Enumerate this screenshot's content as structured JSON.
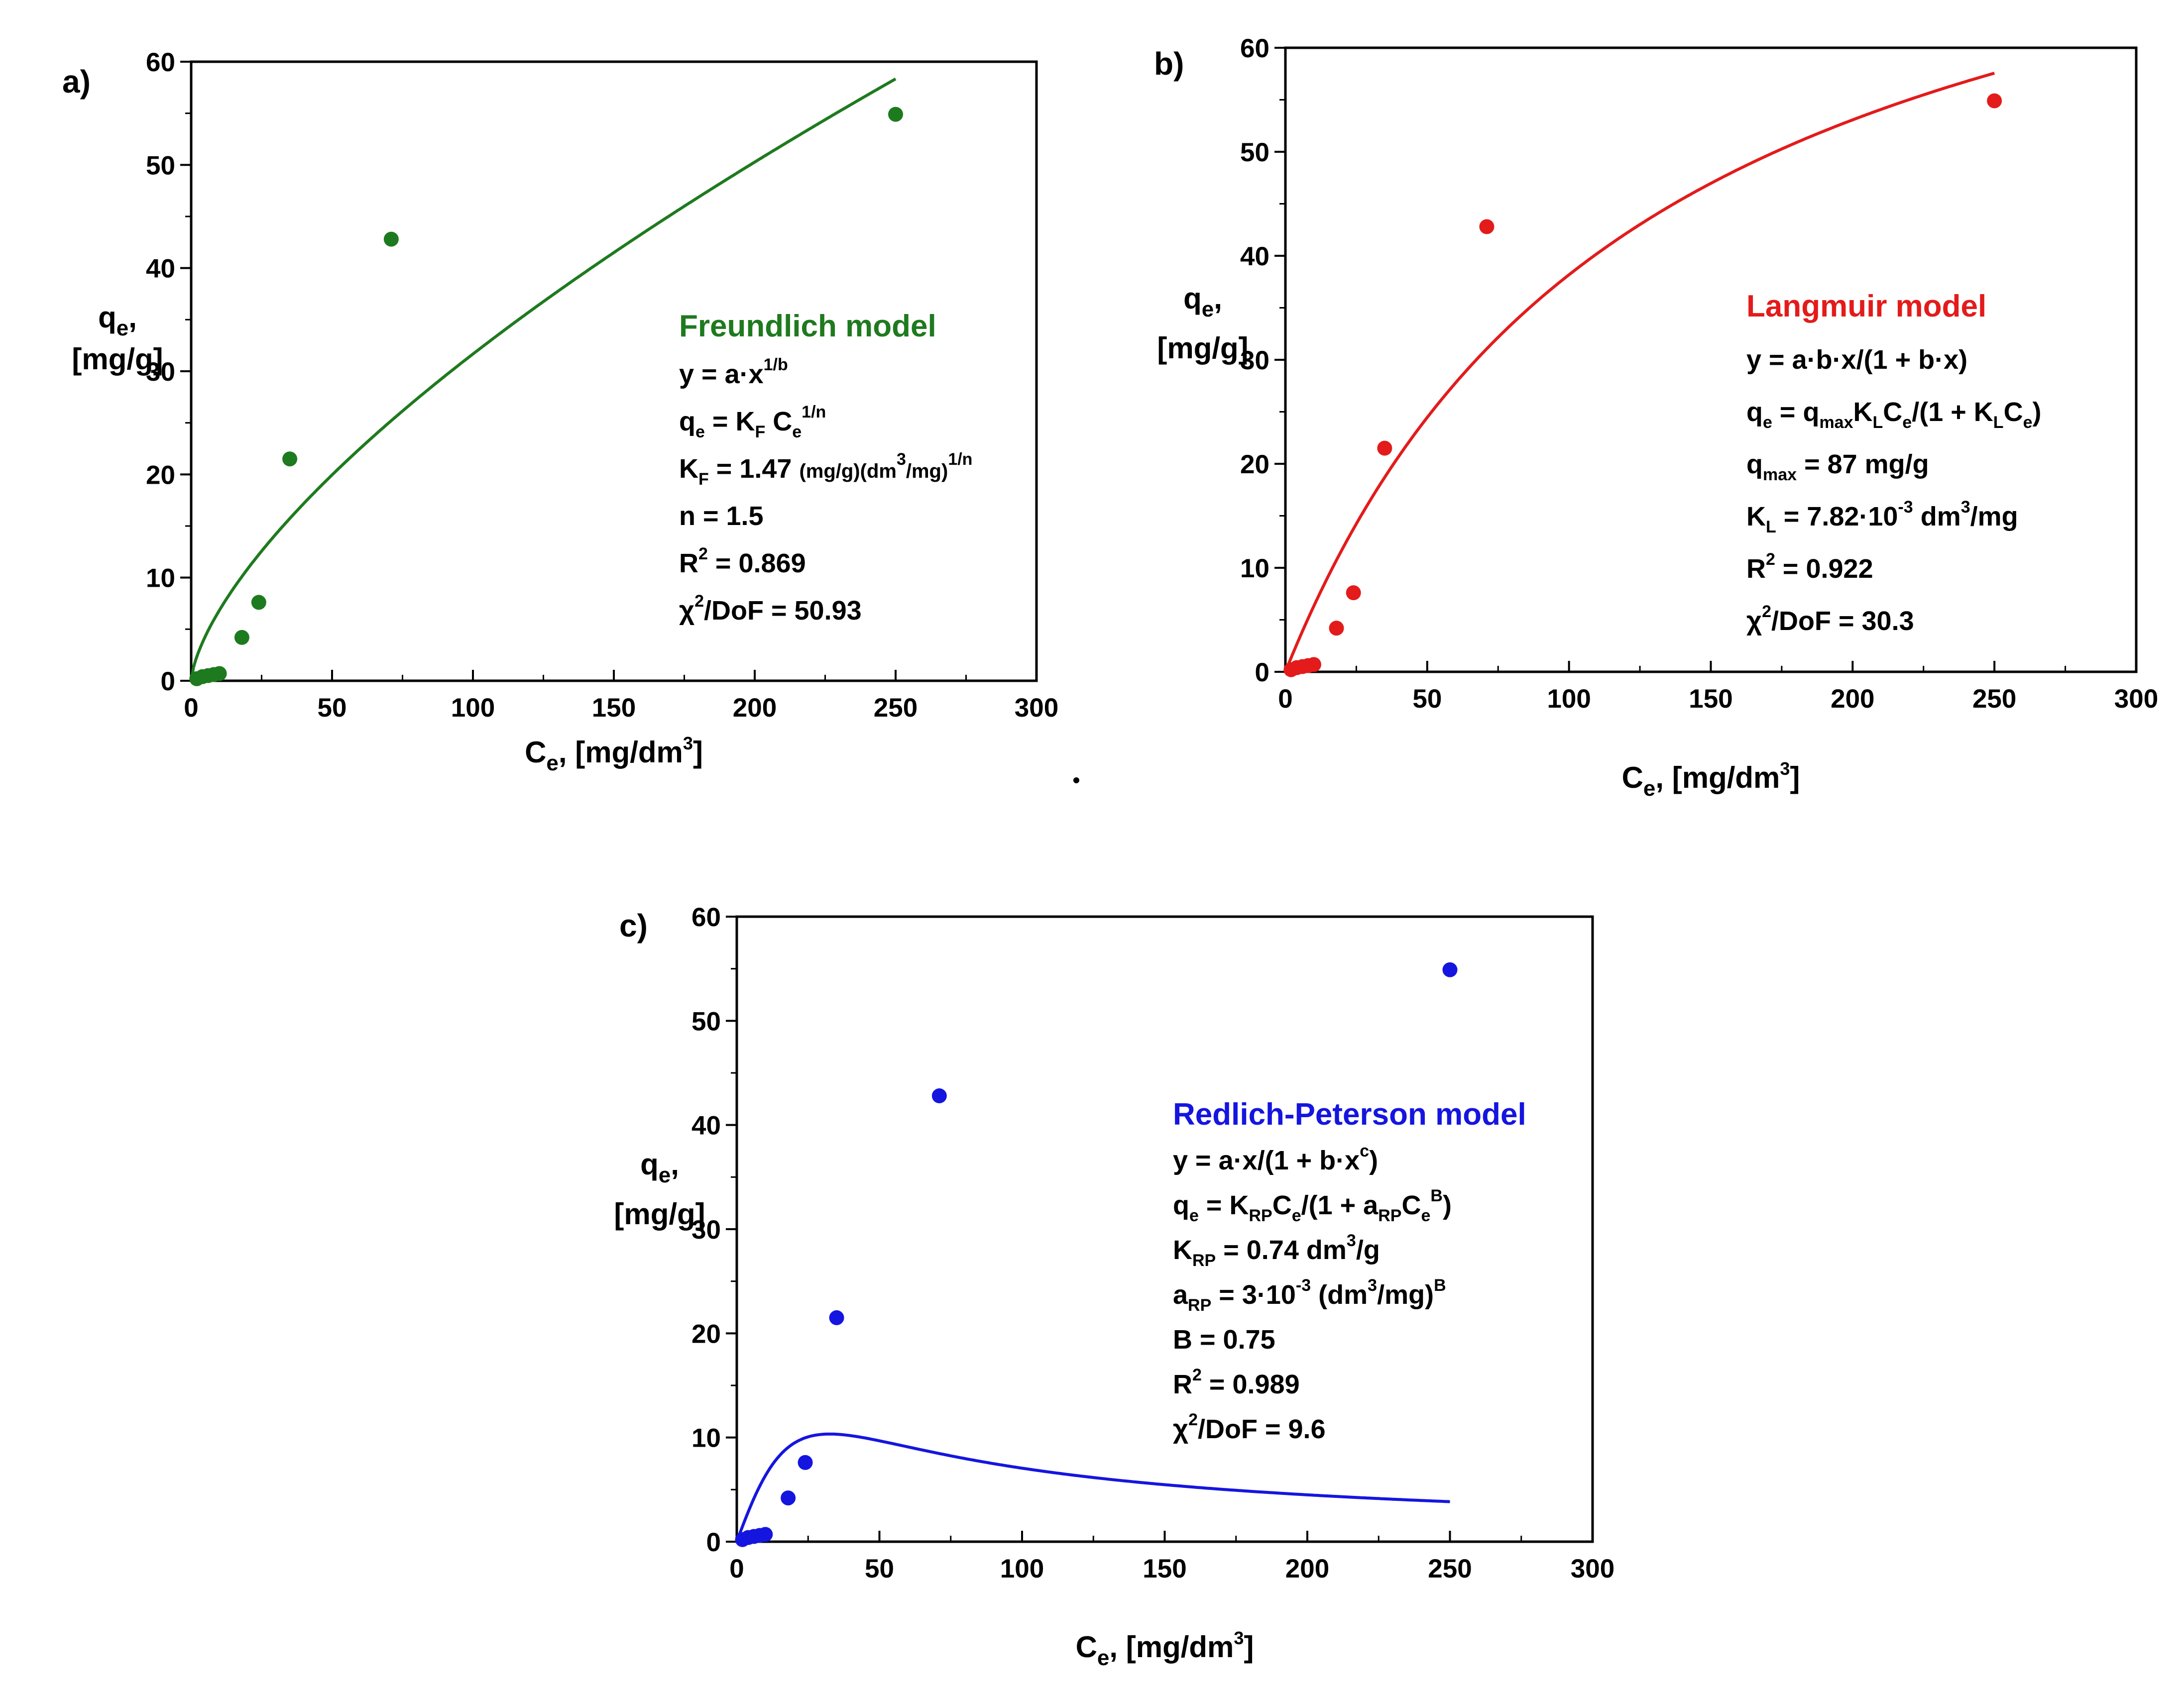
{
  "chart_data": [
    {
      "type": "scatter",
      "panel_label": "a)",
      "ylabel_main": "q",
      "ylabel_sub": "e",
      "ylabel_tail": ",",
      "ylabel_unit": "[mg/g]",
      "xlabel_main": "C",
      "xlabel_sub": "e",
      "xlabel_tail": ", [mg/dm",
      "xlabel_sup": "3",
      "xlabel_end": "]",
      "xlim": [
        0,
        300
      ],
      "ylim": [
        0,
        60
      ],
      "xticks": [
        "0",
        "50",
        "100",
        "150",
        "200",
        "250",
        "300"
      ],
      "yticks": [
        "0",
        "10",
        "20",
        "30",
        "40",
        "50",
        "60"
      ],
      "color": "#1e7a1e",
      "model_name": "Freundlich model",
      "fit": {
        "kind": "freundlich",
        "a": 1.47,
        "b": 1.5,
        "x_max": 250
      },
      "points": [
        [
          2,
          0.2
        ],
        [
          4,
          0.4
        ],
        [
          6,
          0.5
        ],
        [
          8,
          0.6
        ],
        [
          10,
          0.7
        ],
        [
          18,
          4.2
        ],
        [
          24,
          7.6
        ],
        [
          35,
          21.5
        ],
        [
          71,
          42.8
        ],
        [
          250,
          54.9
        ]
      ],
      "lines": [
        [
          {
            "t": "y = a·x"
          },
          {
            "t": "1/b",
            "s": "sup"
          }
        ],
        [
          {
            "t": "q"
          },
          {
            "t": "e",
            "s": "sub"
          },
          {
            "t": " = K"
          },
          {
            "t": "F",
            "s": "sub"
          },
          {
            "t": " C"
          },
          {
            "t": "e",
            "s": "sub"
          },
          {
            "t": "1/n",
            "s": "sup"
          }
        ],
        [
          {
            "t": "K"
          },
          {
            "t": "F",
            "s": "sub"
          },
          {
            "t": " = 1.47 "
          },
          {
            "t": "(mg/g)(dm",
            "s": "small"
          },
          {
            "t": "3",
            "s": "sup"
          },
          {
            "t": "/mg)",
            "s": "small"
          },
          {
            "t": "1/n",
            "s": "sup"
          }
        ],
        [
          {
            "t": "n = 1.5"
          }
        ],
        [
          {
            "t": "R"
          },
          {
            "t": "2",
            "s": "sup"
          },
          {
            "t": " = 0.869"
          }
        ],
        [
          {
            "t": "χ"
          },
          {
            "t": "2",
            "s": "sup"
          },
          {
            "t": "/DoF = 50.93"
          }
        ]
      ]
    },
    {
      "type": "scatter",
      "panel_label": "b)",
      "ylabel_main": "q",
      "ylabel_sub": "e",
      "ylabel_tail": ",",
      "ylabel_unit": "[mg/g]",
      "xlabel_main": "C",
      "xlabel_sub": "e",
      "xlabel_tail": ", [mg/dm",
      "xlabel_sup": "3",
      "xlabel_end": "]",
      "xlim": [
        0,
        300
      ],
      "ylim": [
        0,
        60
      ],
      "xticks": [
        "0",
        "50",
        "100",
        "150",
        "200",
        "250",
        "300"
      ],
      "yticks": [
        "0",
        "10",
        "20",
        "30",
        "40",
        "50",
        "60"
      ],
      "color": "#e31b1b",
      "model_name": "Langmuir model",
      "fit": {
        "kind": "langmuir",
        "qmax": 87,
        "kl": 0.00782,
        "x_max": 250
      },
      "points": [
        [
          2,
          0.2
        ],
        [
          4,
          0.4
        ],
        [
          6,
          0.5
        ],
        [
          8,
          0.6
        ],
        [
          10,
          0.7
        ],
        [
          18,
          4.2
        ],
        [
          24,
          7.6
        ],
        [
          35,
          21.5
        ],
        [
          71,
          42.8
        ],
        [
          250,
          54.9
        ]
      ],
      "lines": [
        [
          {
            "t": "y = a·b·x/(1 + b·x)"
          }
        ],
        [
          {
            "t": "q"
          },
          {
            "t": "e",
            "s": "sub"
          },
          {
            "t": " = q"
          },
          {
            "t": "max",
            "s": "sub"
          },
          {
            "t": "K"
          },
          {
            "t": "L",
            "s": "sub"
          },
          {
            "t": "C"
          },
          {
            "t": "e",
            "s": "sub"
          },
          {
            "t": "/(1 + K"
          },
          {
            "t": "L",
            "s": "sub"
          },
          {
            "t": "C"
          },
          {
            "t": "e",
            "s": "sub"
          },
          {
            "t": ")"
          }
        ],
        [
          {
            "t": "q"
          },
          {
            "t": "max",
            "s": "sub"
          },
          {
            "t": " = 87 mg/g"
          }
        ],
        [
          {
            "t": "K"
          },
          {
            "t": "L",
            "s": "sub"
          },
          {
            "t": " = 7.82·10"
          },
          {
            "t": "-3",
            "s": "sup"
          },
          {
            "t": " dm"
          },
          {
            "t": "3",
            "s": "sup"
          },
          {
            "t": "/mg"
          }
        ],
        [
          {
            "t": "R"
          },
          {
            "t": "2",
            "s": "sup"
          },
          {
            "t": " = 0.922"
          }
        ],
        [
          {
            "t": "χ"
          },
          {
            "t": "2",
            "s": "sup"
          },
          {
            "t": "/DoF = 30.3"
          }
        ]
      ]
    },
    {
      "type": "scatter",
      "panel_label": "c)",
      "ylabel_main": "q",
      "ylabel_sub": "e",
      "ylabel_tail": ",",
      "ylabel_unit": "[mg/g]",
      "xlabel_main": "C",
      "xlabel_sub": "e",
      "xlabel_tail": ", [mg/dm",
      "xlabel_sup": "3",
      "xlabel_end": "]",
      "xlim": [
        0,
        300
      ],
      "ylim": [
        0,
        60
      ],
      "xticks": [
        "0",
        "50",
        "100",
        "150",
        "200",
        "250",
        "300"
      ],
      "yticks": [
        "0",
        "10",
        "20",
        "30",
        "40",
        "50",
        "60"
      ],
      "color": "#1515e0",
      "model_name": "Redlich-Peterson model",
      "fit": {
        "kind": "redlich_peterson",
        "krp": 0.74,
        "arp": 0.003,
        "beta": 0.75,
        "x_max": 250
      },
      "points": [
        [
          2,
          0.2
        ],
        [
          4,
          0.4
        ],
        [
          6,
          0.5
        ],
        [
          8,
          0.6
        ],
        [
          10,
          0.7
        ],
        [
          18,
          4.2
        ],
        [
          24,
          7.6
        ],
        [
          35,
          21.5
        ],
        [
          71,
          42.8
        ],
        [
          250,
          54.9
        ]
      ],
      "lines": [
        [
          {
            "t": "y = a·x/(1 + b·x"
          },
          {
            "t": "c",
            "s": "sup"
          },
          {
            "t": ")"
          }
        ],
        [
          {
            "t": "q"
          },
          {
            "t": "e",
            "s": "sub"
          },
          {
            "t": " = K"
          },
          {
            "t": "RP",
            "s": "sub"
          },
          {
            "t": "C"
          },
          {
            "t": "e",
            "s": "sub"
          },
          {
            "t": "/(1 + a"
          },
          {
            "t": "RP",
            "s": "sub"
          },
          {
            "t": "C"
          },
          {
            "t": "e",
            "s": "sub"
          },
          {
            "t": "B",
            "s": "sup"
          },
          {
            "t": ")"
          }
        ],
        [
          {
            "t": "K"
          },
          {
            "t": "RP",
            "s": "sub"
          },
          {
            "t": " = 0.74 dm"
          },
          {
            "t": "3",
            "s": "sup"
          },
          {
            "t": "/g"
          }
        ],
        [
          {
            "t": "a"
          },
          {
            "t": "RP",
            "s": "sub"
          },
          {
            "t": " = 3·10"
          },
          {
            "t": "-3",
            "s": "sup"
          },
          {
            "t": " (dm"
          },
          {
            "t": "3",
            "s": "sup"
          },
          {
            "t": "/mg)"
          },
          {
            "t": "B",
            "s": "sup"
          }
        ],
        [
          {
            "t": "B = 0.75"
          }
        ],
        [
          {
            "t": "R"
          },
          {
            "t": "2",
            "s": "sup"
          },
          {
            "t": " = 0.989"
          }
        ],
        [
          {
            "t": "χ"
          },
          {
            "t": "2",
            "s": "sup"
          },
          {
            "t": "/DoF = 9.6"
          }
        ]
      ]
    }
  ]
}
